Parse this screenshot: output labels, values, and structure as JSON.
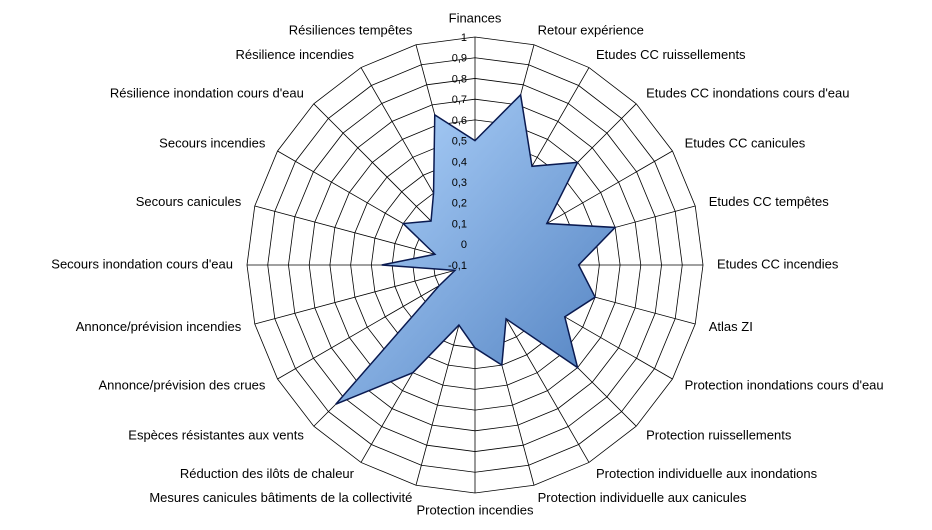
{
  "chart_data": {
    "type": "radar",
    "categories": [
      "Finances",
      "Retour expérience",
      "Etudes CC ruissellements",
      "Etudes CC inondations cours d'eau",
      "Etudes CC canicules",
      "Etudes CC tempêtes",
      "Etudes CC incendies",
      "Atlas ZI",
      "Protection inondations cours d'eau",
      "Protection ruissellements",
      "Protection individuelle aux inondations",
      "Protection individuelle aux canicules",
      "Protection incendies",
      "Mesures canicules bâtiments de la collectivité",
      "Réduction des ilôts de chaleur",
      "Espèces résistantes aux vents",
      "Annonce/prévision des crues",
      "Annonce/prévision incendies",
      "Secours inondation cours d'eau",
      "Secours canicules",
      "Secours incendies",
      "Résilience inondation cours d'eau",
      "Résilience incendies",
      "Résiliences tempêtes"
    ],
    "values": [
      0.5,
      0.75,
      0.45,
      0.6,
      0.3,
      0.6,
      0.4,
      0.5,
      0.4,
      0.6,
      0.2,
      0.4,
      0.3,
      0.2,
      0.5,
      0.85,
      0.1,
      0,
      0.35,
      0.1,
      0.3,
      0.2,
      0.3,
      0.65
    ],
    "color": "#8fbff0",
    "ylim": [
      -0.1,
      1
    ],
    "yticks": [
      {
        "value": -0.1,
        "label": "-0,1"
      },
      0,
      {
        "value": 0.1,
        "label": "0,1"
      },
      {
        "value": 0.2,
        "label": "0,2"
      },
      {
        "value": 0.3,
        "label": "0,3"
      },
      {
        "value": 0.4,
        "label": "0,4"
      },
      {
        "value": 0.5,
        "label": "0,5"
      },
      {
        "value": 0.6,
        "label": "0,6"
      },
      {
        "value": 0.7,
        "label": "0,7"
      },
      {
        "value": 0.8,
        "label": "0,8"
      },
      {
        "value": 0.9,
        "label": "0,9"
      },
      1
    ],
    "grid": true
  }
}
